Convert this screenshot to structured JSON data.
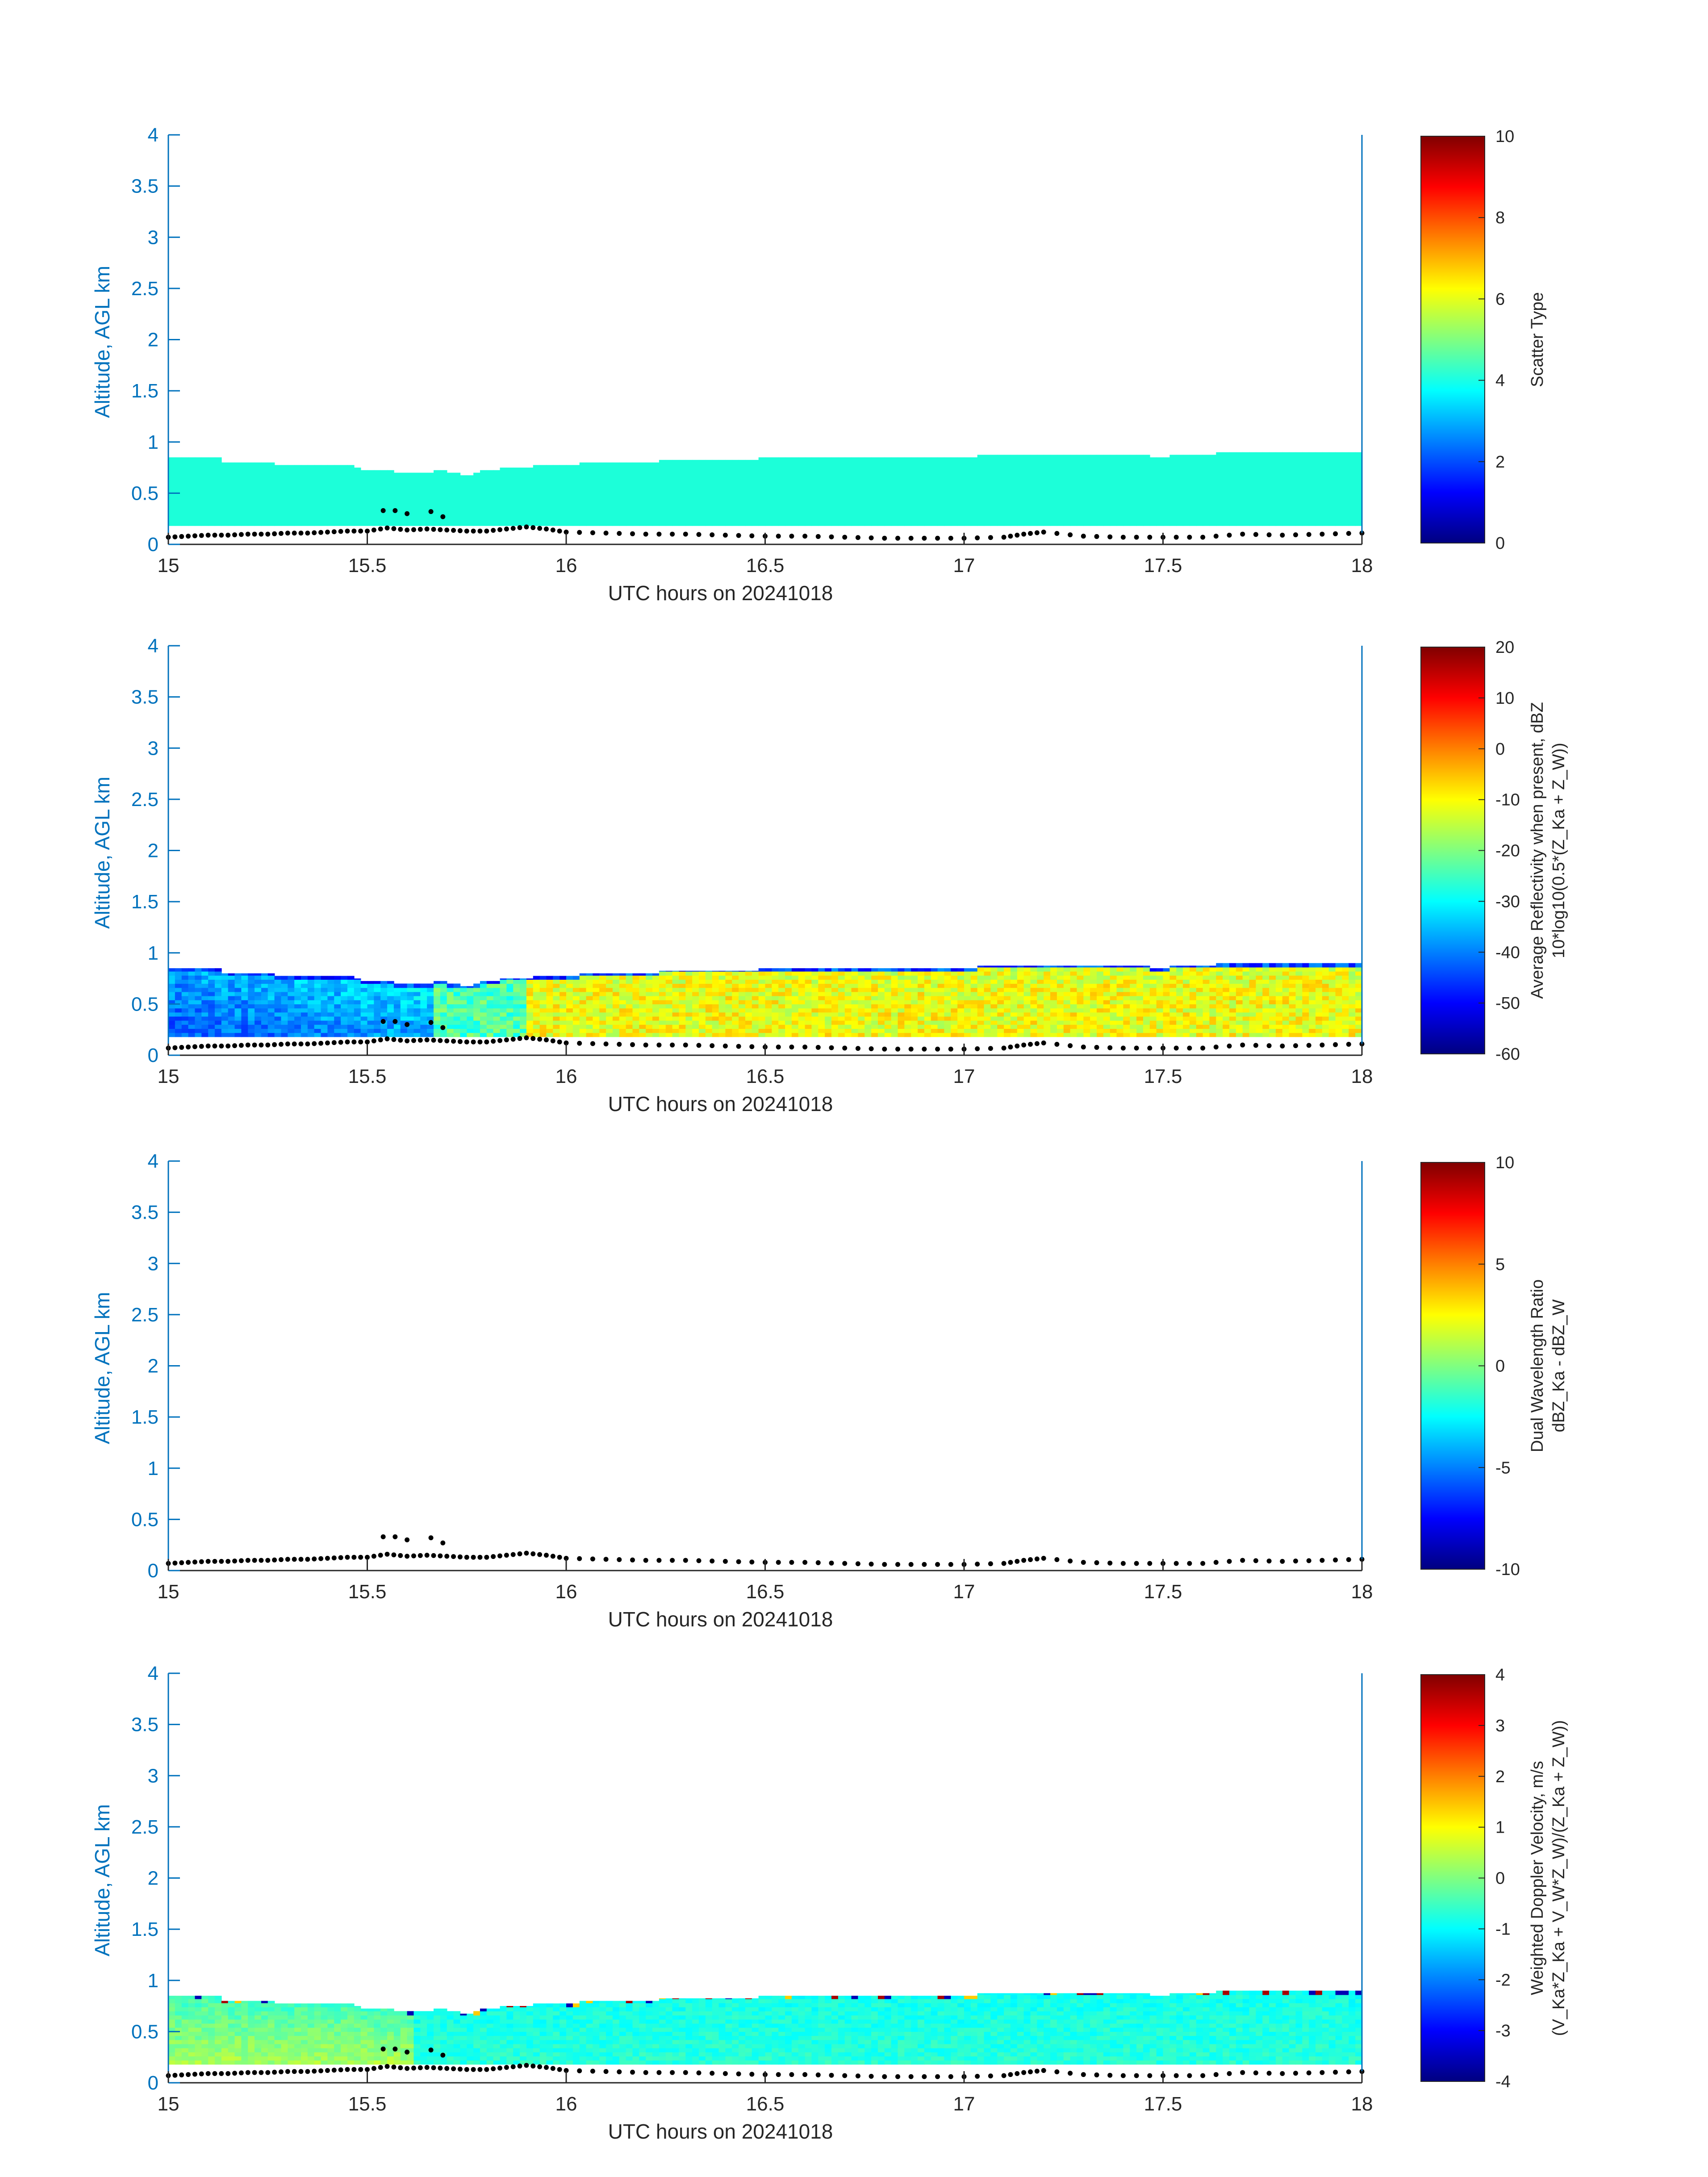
{
  "chart_data": [
    {
      "type": "heatmap",
      "title": "",
      "xlabel": "UTC hours on 20241018",
      "ylabel": "Altitude, AGL km",
      "xlim": [
        15,
        18
      ],
      "ylim": [
        0,
        4
      ],
      "xticks": [
        "15",
        "15.5",
        "16",
        "16.5",
        "17",
        "17.5",
        "18"
      ],
      "yticks": [
        "0",
        "0.5",
        "1",
        "1.5",
        "2",
        "2.5",
        "3",
        "3.5",
        "4"
      ],
      "colorbar": {
        "label_lines": [
          "Scatter Type"
        ],
        "ticks": [
          "0",
          "2",
          "4",
          "6",
          "8",
          "10"
        ],
        "range": [
          0,
          10
        ],
        "colormap": "jet"
      },
      "field": "scatter",
      "value": 4,
      "layer_base_km": 0.18,
      "top_anchors": [
        [
          15.0,
          0.84
        ],
        [
          15.13,
          0.84
        ],
        [
          15.14,
          0.79
        ],
        [
          15.23,
          0.8
        ],
        [
          15.3,
          0.78
        ],
        [
          15.45,
          0.77
        ],
        [
          15.5,
          0.73
        ],
        [
          15.62,
          0.7
        ],
        [
          15.7,
          0.72
        ],
        [
          15.75,
          0.67
        ],
        [
          15.8,
          0.73
        ],
        [
          15.9,
          0.76
        ],
        [
          16.0,
          0.78
        ],
        [
          16.1,
          0.8
        ],
        [
          16.3,
          0.82
        ],
        [
          16.5,
          0.84
        ],
        [
          16.8,
          0.85
        ],
        [
          17.0,
          0.86
        ],
        [
          17.3,
          0.88
        ],
        [
          17.5,
          0.86
        ],
        [
          17.7,
          0.9
        ],
        [
          17.95,
          0.9
        ],
        [
          18.0,
          0.89
        ]
      ],
      "series": [
        {
          "name": "",
          "marker": "dots",
          "x": [
            15.0,
            15.05,
            15.1,
            15.15,
            15.2,
            15.25,
            15.3,
            15.35,
            15.4,
            15.45,
            15.5,
            15.55,
            15.6,
            15.65,
            15.7,
            15.75,
            15.8,
            15.85,
            15.9,
            15.95,
            16.0,
            16.1,
            16.2,
            16.3,
            16.4,
            16.5,
            16.6,
            16.7,
            16.8,
            16.9,
            17.0,
            17.1,
            17.15,
            17.2,
            17.3,
            17.4,
            17.5,
            17.6,
            17.7,
            17.8,
            17.9,
            18.0
          ],
          "y": [
            0.07,
            0.08,
            0.09,
            0.09,
            0.1,
            0.1,
            0.11,
            0.11,
            0.12,
            0.13,
            0.13,
            0.16,
            0.14,
            0.15,
            0.14,
            0.13,
            0.13,
            0.15,
            0.17,
            0.15,
            0.12,
            0.11,
            0.1,
            0.1,
            0.09,
            0.08,
            0.08,
            0.07,
            0.06,
            0.06,
            0.06,
            0.07,
            0.1,
            0.12,
            0.08,
            0.07,
            0.07,
            0.07,
            0.1,
            0.09,
            0.1,
            0.11
          ]
        },
        {
          "name": "",
          "marker": "dots",
          "x": [
            15.54,
            15.57,
            15.6,
            15.66,
            15.69
          ],
          "y": [
            0.33,
            0.33,
            0.3,
            0.32,
            0.27
          ]
        }
      ]
    },
    {
      "type": "heatmap",
      "title": "",
      "xlabel": "UTC hours on 20241018",
      "ylabel": "Altitude, AGL km",
      "xlim": [
        15,
        18
      ],
      "ylim": [
        0,
        4
      ],
      "xticks": [
        "15",
        "15.5",
        "16",
        "16.5",
        "17",
        "17.5",
        "18"
      ],
      "yticks": [
        "0",
        "0.5",
        "1",
        "1.5",
        "2",
        "2.5",
        "3",
        "3.5",
        "4"
      ],
      "colorbar": {
        "label_lines": [
          "Average Reflectivity when present, dBZ",
          "10*log10(0.5*(Z_Ka + Z_W))"
        ],
        "ticks": [
          "-60",
          "-50",
          "-40",
          "-30",
          "-20",
          "-10",
          "0",
          "10",
          "20"
        ],
        "range": [
          -60,
          20
        ],
        "colormap": "jet"
      },
      "field": "reflectivity",
      "layer_base_km": 0.18,
      "top_anchors": [
        [
          15.0,
          0.84
        ],
        [
          15.13,
          0.84
        ],
        [
          15.14,
          0.79
        ],
        [
          15.23,
          0.8
        ],
        [
          15.3,
          0.78
        ],
        [
          15.45,
          0.77
        ],
        [
          15.5,
          0.73
        ],
        [
          15.62,
          0.7
        ],
        [
          15.7,
          0.72
        ],
        [
          15.75,
          0.67
        ],
        [
          15.8,
          0.73
        ],
        [
          15.9,
          0.76
        ],
        [
          16.0,
          0.78
        ],
        [
          16.1,
          0.8
        ],
        [
          16.3,
          0.82
        ],
        [
          16.5,
          0.84
        ],
        [
          16.8,
          0.85
        ],
        [
          17.0,
          0.86
        ],
        [
          17.3,
          0.88
        ],
        [
          17.5,
          0.86
        ],
        [
          17.7,
          0.9
        ],
        [
          17.95,
          0.9
        ],
        [
          18.0,
          0.89
        ]
      ],
      "series": [
        {
          "name": "",
          "marker": "dots",
          "x": [
            15.0,
            15.05,
            15.1,
            15.15,
            15.2,
            15.25,
            15.3,
            15.35,
            15.4,
            15.45,
            15.5,
            15.55,
            15.6,
            15.65,
            15.7,
            15.75,
            15.8,
            15.85,
            15.9,
            15.95,
            16.0,
            16.1,
            16.2,
            16.3,
            16.4,
            16.5,
            16.6,
            16.7,
            16.8,
            16.9,
            17.0,
            17.1,
            17.15,
            17.2,
            17.3,
            17.4,
            17.5,
            17.6,
            17.7,
            17.8,
            17.9,
            18.0
          ],
          "y": [
            0.07,
            0.08,
            0.09,
            0.09,
            0.1,
            0.1,
            0.11,
            0.11,
            0.12,
            0.13,
            0.13,
            0.16,
            0.14,
            0.15,
            0.14,
            0.13,
            0.13,
            0.15,
            0.17,
            0.15,
            0.12,
            0.11,
            0.1,
            0.1,
            0.09,
            0.08,
            0.08,
            0.07,
            0.06,
            0.06,
            0.06,
            0.07,
            0.1,
            0.12,
            0.08,
            0.07,
            0.07,
            0.07,
            0.1,
            0.09,
            0.1,
            0.11
          ]
        },
        {
          "name": "",
          "marker": "dots",
          "x": [
            15.54,
            15.57,
            15.6,
            15.66,
            15.69
          ],
          "y": [
            0.33,
            0.33,
            0.3,
            0.32,
            0.27
          ]
        }
      ]
    },
    {
      "type": "heatmap",
      "title": "",
      "xlabel": "UTC hours on 20241018",
      "ylabel": "Altitude, AGL km",
      "xlim": [
        15,
        18
      ],
      "ylim": [
        0,
        4
      ],
      "xticks": [
        "15",
        "15.5",
        "16",
        "16.5",
        "17",
        "17.5",
        "18"
      ],
      "yticks": [
        "0",
        "0.5",
        "1",
        "1.5",
        "2",
        "2.5",
        "3",
        "3.5",
        "4"
      ],
      "colorbar": {
        "label_lines": [
          "Dual Wavelength Ratio",
          "dBZ_Ka - dBZ_W"
        ],
        "ticks": [
          "-10",
          "-5",
          "0",
          "5",
          "10"
        ],
        "range": [
          -10,
          10
        ],
        "colormap": "jet"
      },
      "field": "none",
      "series": [
        {
          "name": "",
          "marker": "dots",
          "x": [
            15.0,
            15.05,
            15.1,
            15.15,
            15.2,
            15.25,
            15.3,
            15.35,
            15.4,
            15.45,
            15.5,
            15.55,
            15.6,
            15.65,
            15.7,
            15.75,
            15.8,
            15.85,
            15.9,
            15.95,
            16.0,
            16.1,
            16.2,
            16.3,
            16.4,
            16.5,
            16.6,
            16.7,
            16.8,
            16.9,
            17.0,
            17.1,
            17.15,
            17.2,
            17.3,
            17.4,
            17.5,
            17.6,
            17.7,
            17.8,
            17.9,
            18.0
          ],
          "y": [
            0.07,
            0.08,
            0.09,
            0.09,
            0.1,
            0.1,
            0.11,
            0.11,
            0.12,
            0.13,
            0.13,
            0.16,
            0.14,
            0.15,
            0.14,
            0.13,
            0.13,
            0.15,
            0.17,
            0.15,
            0.12,
            0.11,
            0.1,
            0.1,
            0.09,
            0.08,
            0.08,
            0.07,
            0.06,
            0.06,
            0.06,
            0.07,
            0.1,
            0.12,
            0.08,
            0.07,
            0.07,
            0.07,
            0.1,
            0.09,
            0.1,
            0.11
          ]
        },
        {
          "name": "",
          "marker": "dots",
          "x": [
            15.54,
            15.57,
            15.6,
            15.66,
            15.69
          ],
          "y": [
            0.33,
            0.33,
            0.3,
            0.32,
            0.27
          ]
        }
      ]
    },
    {
      "type": "heatmap",
      "title": "",
      "xlabel": "UTC hours on 20241018",
      "ylabel": "Altitude, AGL km",
      "xlim": [
        15,
        18
      ],
      "ylim": [
        0,
        4
      ],
      "xticks": [
        "15",
        "15.5",
        "16",
        "16.5",
        "17",
        "17.5",
        "18"
      ],
      "yticks": [
        "0",
        "0.5",
        "1",
        "1.5",
        "2",
        "2.5",
        "3",
        "3.5",
        "4"
      ],
      "colorbar": {
        "label_lines": [
          "Weighted Doppler Velocity, m/s",
          "(V_Ka*Z_Ka + V_W*Z_W)/(Z_Ka + Z_W))"
        ],
        "ticks": [
          "-4",
          "-3",
          "-2",
          "-1",
          "0",
          "1",
          "2",
          "3",
          "4"
        ],
        "range": [
          -4,
          4
        ],
        "colormap": "jet"
      },
      "field": "velocity",
      "layer_base_km": 0.18,
      "top_anchors": [
        [
          15.0,
          0.84
        ],
        [
          15.13,
          0.84
        ],
        [
          15.14,
          0.79
        ],
        [
          15.23,
          0.8
        ],
        [
          15.3,
          0.78
        ],
        [
          15.45,
          0.77
        ],
        [
          15.5,
          0.73
        ],
        [
          15.62,
          0.7
        ],
        [
          15.7,
          0.72
        ],
        [
          15.75,
          0.67
        ],
        [
          15.8,
          0.73
        ],
        [
          15.9,
          0.76
        ],
        [
          16.0,
          0.78
        ],
        [
          16.1,
          0.8
        ],
        [
          16.3,
          0.82
        ],
        [
          16.5,
          0.84
        ],
        [
          16.8,
          0.85
        ],
        [
          17.0,
          0.86
        ],
        [
          17.3,
          0.88
        ],
        [
          17.5,
          0.86
        ],
        [
          17.7,
          0.9
        ],
        [
          17.95,
          0.9
        ],
        [
          18.0,
          0.89
        ]
      ],
      "series": [
        {
          "name": "",
          "marker": "dots",
          "x": [
            15.0,
            15.05,
            15.1,
            15.15,
            15.2,
            15.25,
            15.3,
            15.35,
            15.4,
            15.45,
            15.5,
            15.55,
            15.6,
            15.65,
            15.7,
            15.75,
            15.8,
            15.85,
            15.9,
            15.95,
            16.0,
            16.1,
            16.2,
            16.3,
            16.4,
            16.5,
            16.6,
            16.7,
            16.8,
            16.9,
            17.0,
            17.1,
            17.15,
            17.2,
            17.3,
            17.4,
            17.5,
            17.6,
            17.7,
            17.8,
            17.9,
            18.0
          ],
          "y": [
            0.07,
            0.08,
            0.09,
            0.09,
            0.1,
            0.1,
            0.11,
            0.11,
            0.12,
            0.13,
            0.13,
            0.16,
            0.14,
            0.15,
            0.14,
            0.13,
            0.13,
            0.15,
            0.17,
            0.15,
            0.12,
            0.11,
            0.1,
            0.1,
            0.09,
            0.08,
            0.08,
            0.07,
            0.06,
            0.06,
            0.06,
            0.07,
            0.1,
            0.12,
            0.08,
            0.07,
            0.07,
            0.07,
            0.1,
            0.09,
            0.1,
            0.11
          ]
        },
        {
          "name": "",
          "marker": "dots",
          "x": [
            15.54,
            15.57,
            15.6,
            15.66,
            15.69
          ],
          "y": [
            0.33,
            0.33,
            0.3,
            0.32,
            0.27
          ]
        }
      ]
    }
  ]
}
